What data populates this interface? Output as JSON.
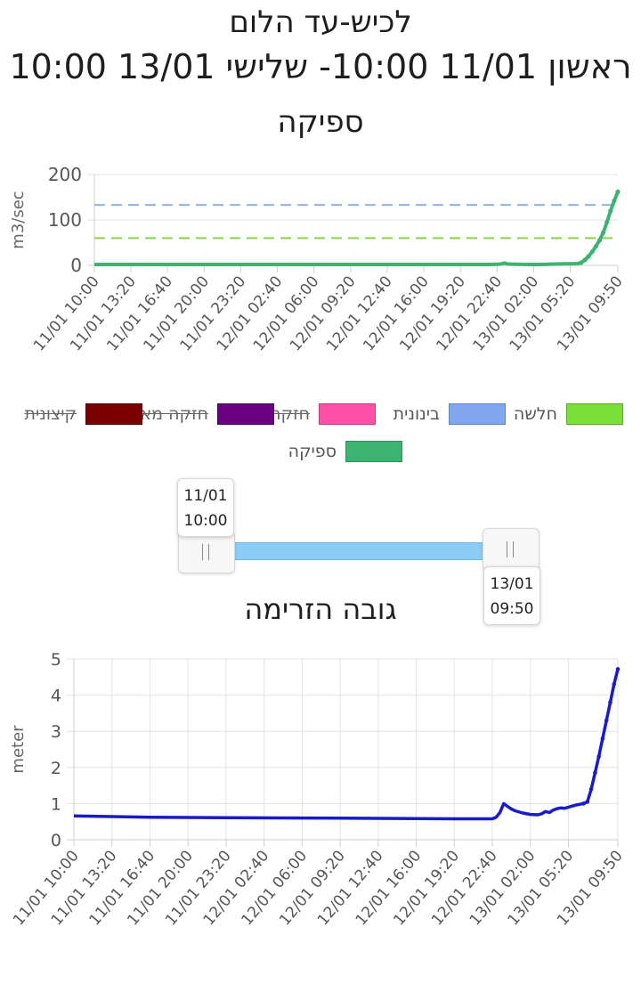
{
  "header": {
    "station": "לכיש-עד הלום",
    "period": "ראשון 11/01 10:00- שלישי 13/01 10:00"
  },
  "chart_data": [
    {
      "type": "line",
      "title": "ספיקה",
      "ylabel": "m3/sec",
      "xlabel": "",
      "ylim": [
        0,
        200
      ],
      "yticks": [
        0,
        100,
        200
      ],
      "xlim": [
        0,
        143
      ],
      "x_tick_labels": [
        "11/01 10:00",
        "11/01 13:20",
        "11/01 16:40",
        "11/01 20:00",
        "11/01 23:20",
        "12/01 02:40",
        "12/01 06:00",
        "12/01 09:20",
        "12/01 12:40",
        "12/01 16:00",
        "12/01 19:20",
        "12/01 22:40",
        "13/01 02:00",
        "13/01 05:20",
        "13/01 09:50"
      ],
      "x_tick_positions": [
        0,
        10,
        20,
        30,
        40,
        50,
        60,
        70,
        80,
        90,
        100,
        110,
        120,
        130,
        143
      ],
      "grid": true,
      "legend_position": "bottom",
      "thresholds": [
        {
          "name": "חלשה",
          "value": 60,
          "color": "#8bd34a"
        },
        {
          "name": "בינונית",
          "value": 133,
          "color": "#8fb2e6"
        }
      ],
      "series": [
        {
          "name": "ספיקה",
          "color": "#3cb371",
          "x": [
            0,
            20,
            40,
            60,
            80,
            100,
            108,
            110,
            111,
            112,
            113,
            115,
            118,
            122,
            126,
            130,
            132,
            133,
            134,
            135,
            136,
            137,
            138,
            139,
            140,
            141,
            142,
            143
          ],
          "y": [
            2,
            2,
            2,
            2,
            2,
            2,
            2,
            2.5,
            3,
            5,
            3,
            2.5,
            2,
            2,
            3,
            3.5,
            4,
            6,
            12,
            20,
            30,
            42,
            55,
            72,
            95,
            120,
            142,
            162
          ]
        }
      ]
    },
    {
      "type": "line",
      "title": "גובה הזרימה",
      "ylabel": "meter",
      "xlabel": "",
      "ylim": [
        0,
        5
      ],
      "yticks": [
        0,
        1,
        2,
        3,
        4,
        5
      ],
      "xlim": [
        0,
        143
      ],
      "x_tick_labels": [
        "11/01 10:00",
        "11/01 13:20",
        "11/01 16:40",
        "11/01 20:00",
        "11/01 23:20",
        "12/01 02:40",
        "12/01 06:00",
        "12/01 09:20",
        "12/01 12:40",
        "12/01 16:00",
        "12/01 19:20",
        "12/01 22:40",
        "13/01 02:00",
        "13/01 05:20",
        "13/01 09:50"
      ],
      "x_tick_positions": [
        0,
        10,
        20,
        30,
        40,
        50,
        60,
        70,
        80,
        90,
        100,
        110,
        120,
        130,
        143
      ],
      "grid": true,
      "series": [
        {
          "name": "גובה הזרימה",
          "color": "#1a1acd",
          "x": [
            0,
            10,
            20,
            40,
            60,
            80,
            100,
            110,
            111,
            112,
            113,
            114,
            115,
            116,
            118,
            120,
            122,
            123,
            124,
            125,
            126,
            127,
            128,
            129,
            130,
            131,
            132,
            133,
            134,
            135,
            136,
            137,
            138,
            139,
            140,
            141,
            142,
            143
          ],
          "y": [
            0.66,
            0.64,
            0.62,
            0.61,
            0.6,
            0.59,
            0.58,
            0.58,
            0.62,
            0.75,
            1.0,
            0.92,
            0.85,
            0.8,
            0.74,
            0.7,
            0.69,
            0.72,
            0.78,
            0.75,
            0.82,
            0.86,
            0.88,
            0.87,
            0.9,
            0.93,
            0.96,
            0.98,
            1.0,
            1.05,
            1.4,
            1.85,
            2.3,
            2.8,
            3.3,
            3.8,
            4.3,
            4.72
          ]
        }
      ]
    }
  ],
  "legend": [
    {
      "label": "חלשה",
      "color": "#79e03a",
      "border": "#5aa82a",
      "hidden": false
    },
    {
      "label": "בינונית",
      "color": "#7fa6ef",
      "border": "#5d84cc",
      "hidden": false
    },
    {
      "label": "חזקה",
      "color": "#ff4fa8",
      "border": "#c23a80",
      "hidden": true
    },
    {
      "label": "חזקה מאוד",
      "color": "#6a0080",
      "border": "#4d005d",
      "hidden": true
    },
    {
      "label": "קיצונית",
      "color": "#7b0000",
      "border": "#4d0000",
      "hidden": true
    },
    {
      "label": "ספיקה",
      "color": "#3cb371",
      "border": "#2e9058",
      "hidden": false
    }
  ],
  "range_slider": {
    "start_date": "11/01",
    "start_time": "10:00",
    "end_date": "13/01",
    "end_time": "09:50"
  }
}
